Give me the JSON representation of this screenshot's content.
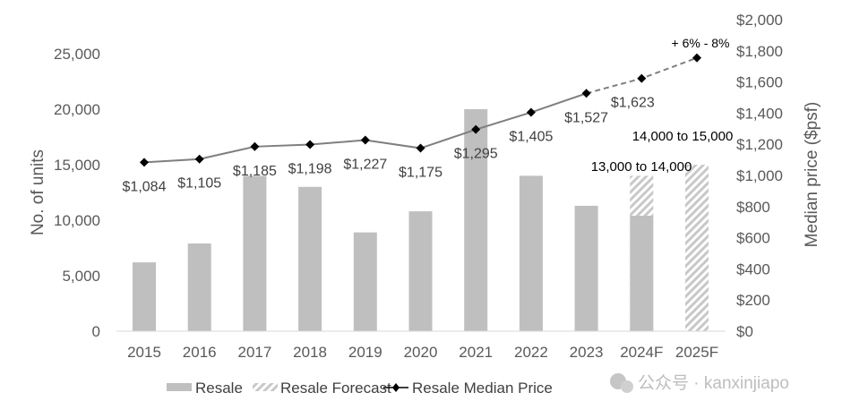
{
  "chart_data": {
    "type": "bar",
    "categories": [
      "2015",
      "2016",
      "2017",
      "2018",
      "2019",
      "2020",
      "2021",
      "2022",
      "2023",
      "2024F",
      "2025F"
    ],
    "series": [
      {
        "name": "Resale",
        "type": "bar",
        "axis": "left",
        "values": [
          6200,
          7900,
          14000,
          13000,
          8900,
          10800,
          20000,
          14000,
          11300,
          10400,
          null
        ]
      },
      {
        "name": "Resale Forecast",
        "type": "bar-hatched",
        "axis": "left",
        "values": [
          null,
          null,
          null,
          null,
          null,
          null,
          null,
          null,
          null,
          14000,
          15000
        ]
      },
      {
        "name": "Resale Median Price",
        "type": "line",
        "axis": "right",
        "values": [
          1084,
          1105,
          1185,
          1198,
          1227,
          1175,
          1295,
          1405,
          1527,
          1623,
          1755
        ],
        "labels": [
          "$1,084",
          "$1,105",
          "$1,185",
          "$1,198",
          "$1,227",
          "$1,175",
          "$1,295",
          "$1,405",
          "$1,527",
          "$1,623",
          ""
        ],
        "dashed_from_index": 8
      }
    ],
    "annotations": [
      "13,000 to 14,000",
      "14,000 to 15,000",
      "+ 6% - 8%"
    ],
    "ylabel": "No. of units",
    "ylabel_right": "Median price ($psf)",
    "ylim": [
      0,
      25000
    ],
    "ylim_right": [
      0,
      2000
    ],
    "yticks": [
      "0",
      "5,000",
      "10,000",
      "15,000",
      "20,000",
      "25,000"
    ],
    "yticks_right": [
      "$0",
      "$200",
      "$400",
      "$600",
      "$800",
      "$1,000",
      "$1,200",
      "$1,400",
      "$1,600",
      "$1,800",
      "$2,000"
    ],
    "grid": false,
    "legend": "bottom",
    "legend_entries": [
      "Resale",
      "Resale Forecast",
      "Resale Median Price"
    ],
    "colors": {
      "bar": "#bfbfbf",
      "hatch": "#c8c8c8",
      "line": "#7f7f7f",
      "marker": "#000000",
      "axis_text": "#595959"
    }
  },
  "watermark": "公众号 · kanxinjiapo"
}
